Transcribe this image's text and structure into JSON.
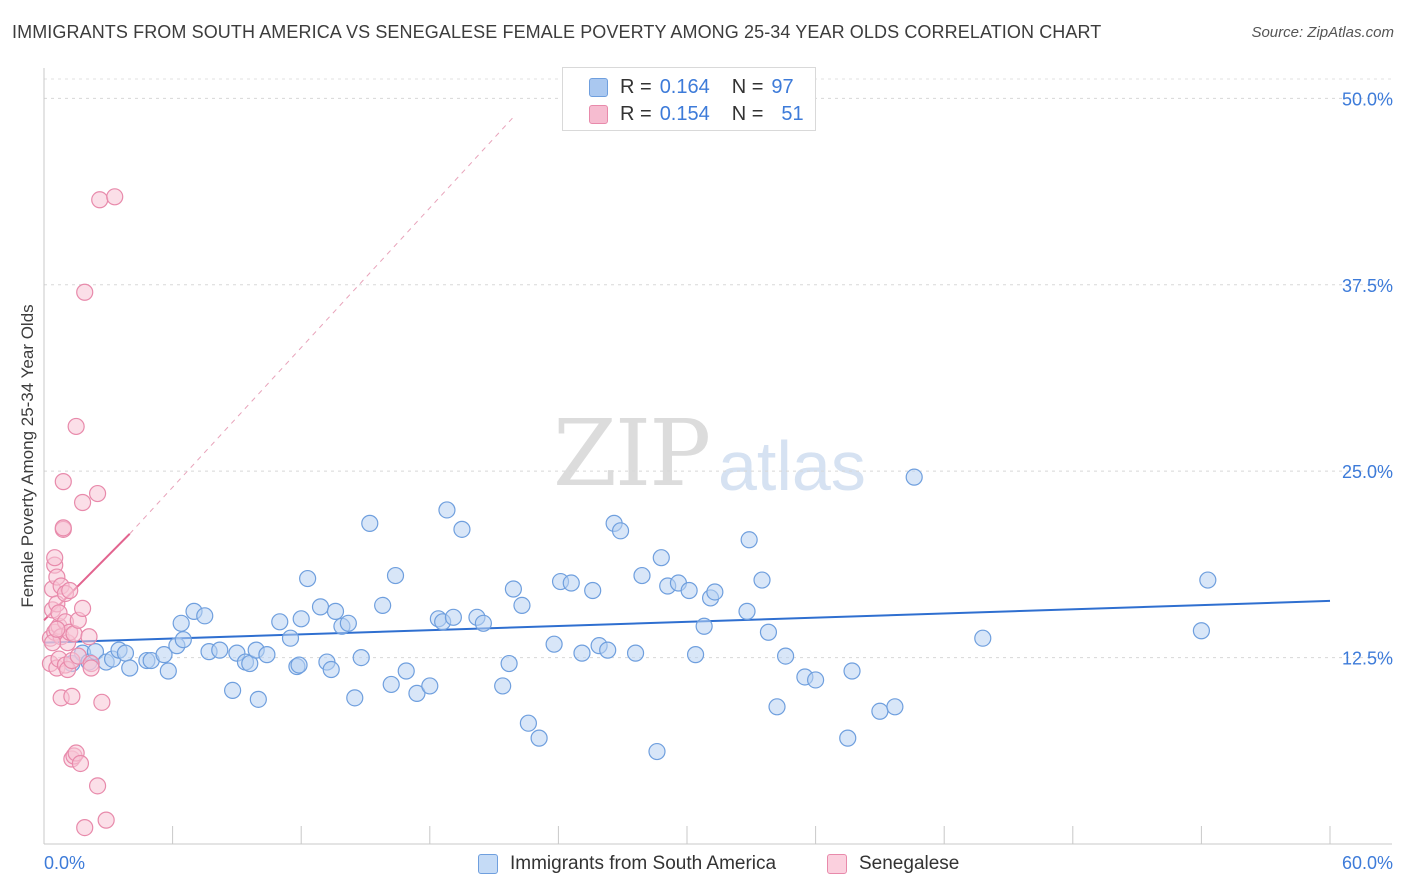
{
  "title": "IMMIGRANTS FROM SOUTH AMERICA VS SENEGALESE FEMALE POVERTY AMONG 25-34 YEAR OLDS CORRELATION CHART",
  "source": "Source: ZipAtlas.com",
  "watermark": {
    "zip": "ZIP",
    "atlas": "atlas"
  },
  "legend": {
    "r_label": "R =",
    "n_label": "N =",
    "items": [
      {
        "r": "0.164",
        "n": "97",
        "color": "#aac8f0",
        "border": "#6f9fde"
      },
      {
        "r": "0.154",
        "n": "51",
        "color": "#f6bcd0",
        "border": "#e88aab"
      }
    ]
  },
  "bottom_legend": [
    {
      "label": "Immigrants from South America",
      "color": "#c5dbf6",
      "border": "#6f9fde"
    },
    {
      "label": "Senegalese",
      "color": "#fbd0de",
      "border": "#e88aab"
    }
  ],
  "chart_data": {
    "type": "scatter",
    "title": "IMMIGRANTS FROM SOUTH AMERICA VS SENEGALESE FEMALE POVERTY AMONG 25-34 YEAR OLDS CORRELATION CHART",
    "xlabel": "",
    "ylabel": "Female Poverty Among 25-34 Year Olds",
    "xlim": [
      0,
      60
    ],
    "ylim": [
      0,
      51.5
    ],
    "x_tick_labels": [
      "0.0%",
      "60.0%"
    ],
    "y_ticks": [
      12.5,
      25.0,
      37.5,
      50.0
    ],
    "y_tick_labels": [
      "12.5%",
      "25.0%",
      "37.5%",
      "50.0%"
    ],
    "grid": true,
    "series": [
      {
        "name": "Immigrants from South America",
        "color": "#6f9fde",
        "fill": "#b8d2f3",
        "trend": {
          "x": [
            0,
            60
          ],
          "y": [
            13.5,
            16.3
          ],
          "style": "solid",
          "color": "#2f6fd0"
        },
        "points": [
          [
            1.3,
            12.1
          ],
          [
            1.8,
            12.8
          ],
          [
            2.1,
            12.2
          ],
          [
            2.4,
            12.9
          ],
          [
            2.9,
            12.2
          ],
          [
            3.2,
            12.4
          ],
          [
            3.5,
            13.0
          ],
          [
            3.8,
            12.8
          ],
          [
            4.0,
            11.8
          ],
          [
            4.8,
            12.3
          ],
          [
            5.0,
            12.3
          ],
          [
            5.6,
            12.7
          ],
          [
            5.8,
            11.6
          ],
          [
            6.2,
            13.3
          ],
          [
            6.4,
            14.8
          ],
          [
            6.5,
            13.7
          ],
          [
            7.0,
            15.6
          ],
          [
            7.5,
            15.3
          ],
          [
            7.7,
            12.9
          ],
          [
            8.2,
            13.0
          ],
          [
            8.8,
            10.3
          ],
          [
            9.0,
            12.8
          ],
          [
            9.4,
            12.2
          ],
          [
            9.6,
            12.1
          ],
          [
            9.9,
            13.0
          ],
          [
            10.0,
            9.7
          ],
          [
            10.4,
            12.7
          ],
          [
            11.0,
            14.9
          ],
          [
            11.5,
            13.8
          ],
          [
            11.8,
            11.9
          ],
          [
            11.9,
            12.0
          ],
          [
            12.0,
            15.1
          ],
          [
            12.3,
            17.8
          ],
          [
            12.9,
            15.9
          ],
          [
            13.2,
            12.2
          ],
          [
            13.4,
            11.7
          ],
          [
            13.6,
            15.6
          ],
          [
            13.9,
            14.6
          ],
          [
            14.2,
            14.8
          ],
          [
            14.5,
            9.8
          ],
          [
            14.8,
            12.5
          ],
          [
            15.2,
            21.5
          ],
          [
            15.8,
            16.0
          ],
          [
            16.2,
            10.7
          ],
          [
            16.4,
            18.0
          ],
          [
            16.9,
            11.6
          ],
          [
            17.4,
            10.1
          ],
          [
            18.0,
            10.6
          ],
          [
            18.4,
            15.1
          ],
          [
            18.6,
            14.9
          ],
          [
            18.8,
            22.4
          ],
          [
            19.1,
            15.2
          ],
          [
            19.5,
            21.1
          ],
          [
            20.2,
            15.2
          ],
          [
            20.5,
            14.8
          ],
          [
            21.4,
            10.6
          ],
          [
            21.7,
            12.1
          ],
          [
            21.9,
            17.1
          ],
          [
            22.3,
            16.0
          ],
          [
            22.6,
            8.1
          ],
          [
            23.1,
            7.1
          ],
          [
            23.8,
            13.4
          ],
          [
            24.1,
            17.6
          ],
          [
            24.6,
            17.5
          ],
          [
            25.1,
            12.8
          ],
          [
            25.6,
            17.0
          ],
          [
            25.9,
            13.3
          ],
          [
            26.3,
            13.0
          ],
          [
            26.6,
            21.5
          ],
          [
            26.9,
            21.0
          ],
          [
            27.6,
            12.8
          ],
          [
            27.9,
            18.0
          ],
          [
            28.6,
            6.2
          ],
          [
            28.8,
            19.2
          ],
          [
            29.1,
            17.3
          ],
          [
            29.6,
            17.5
          ],
          [
            30.1,
            17.0
          ],
          [
            30.4,
            12.7
          ],
          [
            30.8,
            14.6
          ],
          [
            31.1,
            16.5
          ],
          [
            31.3,
            16.9
          ],
          [
            32.8,
            15.6
          ],
          [
            32.9,
            20.4
          ],
          [
            33.5,
            17.7
          ],
          [
            33.8,
            14.2
          ],
          [
            34.2,
            9.2
          ],
          [
            34.6,
            12.6
          ],
          [
            35.5,
            11.2
          ],
          [
            36.0,
            11.0
          ],
          [
            37.5,
            7.1
          ],
          [
            37.7,
            11.6
          ],
          [
            39.0,
            8.9
          ],
          [
            39.7,
            9.2
          ],
          [
            40.6,
            24.6
          ],
          [
            43.8,
            13.8
          ],
          [
            54.0,
            14.3
          ],
          [
            54.3,
            17.7
          ]
        ]
      },
      {
        "name": "Senegalese",
        "color": "#e88aab",
        "fill": "#f8c4d5",
        "trend": {
          "x": [
            0,
            4.0
          ],
          "y": [
            15.0,
            20.8
          ],
          "style": "solid",
          "color": "#e2648f",
          "extension": {
            "x": [
              4.0,
              22.0
            ],
            "y": [
              20.8,
              48.9
            ],
            "style": "dashed"
          }
        },
        "points": [
          [
            0.3,
            12.1
          ],
          [
            0.3,
            13.8
          ],
          [
            0.4,
            15.7
          ],
          [
            0.4,
            17.1
          ],
          [
            0.5,
            14.2
          ],
          [
            0.5,
            18.7
          ],
          [
            0.5,
            19.2
          ],
          [
            0.6,
            11.8
          ],
          [
            0.6,
            16.1
          ],
          [
            0.6,
            17.9
          ],
          [
            0.7,
            12.4
          ],
          [
            0.7,
            14.6
          ],
          [
            0.7,
            15.5
          ],
          [
            0.8,
            9.8
          ],
          [
            0.8,
            13.9
          ],
          [
            0.8,
            17.3
          ],
          [
            0.9,
            21.1
          ],
          [
            0.9,
            24.3
          ],
          [
            0.9,
            21.2
          ],
          [
            1.0,
            12.0
          ],
          [
            1.0,
            14.9
          ],
          [
            1.0,
            16.8
          ],
          [
            1.1,
            11.7
          ],
          [
            1.1,
            13.5
          ],
          [
            1.2,
            14.2
          ],
          [
            1.2,
            17.0
          ],
          [
            1.3,
            5.7
          ],
          [
            1.3,
            9.9
          ],
          [
            1.3,
            12.3
          ],
          [
            1.4,
            5.9
          ],
          [
            1.4,
            14.1
          ],
          [
            1.5,
            6.1
          ],
          [
            1.5,
            28.0
          ],
          [
            1.6,
            12.6
          ],
          [
            1.6,
            15.0
          ],
          [
            1.7,
            5.4
          ],
          [
            1.8,
            22.9
          ],
          [
            1.8,
            15.8
          ],
          [
            1.9,
            1.1
          ],
          [
            1.9,
            37.0
          ],
          [
            2.1,
            13.9
          ],
          [
            2.2,
            12.1
          ],
          [
            2.2,
            11.8
          ],
          [
            2.5,
            3.9
          ],
          [
            2.5,
            23.5
          ],
          [
            2.6,
            43.2
          ],
          [
            2.7,
            9.5
          ],
          [
            2.9,
            1.6
          ],
          [
            3.3,
            43.4
          ],
          [
            0.4,
            13.5
          ],
          [
            0.6,
            14.4
          ]
        ]
      }
    ]
  }
}
